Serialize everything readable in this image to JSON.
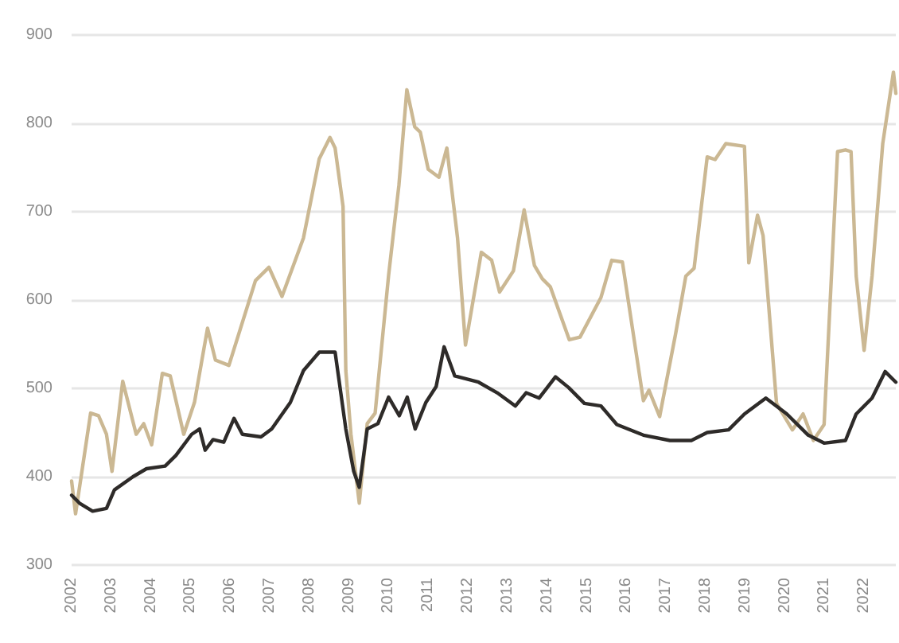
{
  "chart_data": {
    "type": "line",
    "xlim": [
      2002,
      2022.8
    ],
    "xticks": [
      2002,
      2003,
      2004,
      2005,
      2006,
      2007,
      2008,
      2009,
      2010,
      2011,
      2012,
      2013,
      2014,
      2015,
      2016,
      2017,
      2018,
      2019,
      2020,
      2021,
      2022
    ],
    "ylim": [
      300,
      900
    ],
    "yticks": [
      300,
      400,
      500,
      600,
      700,
      800,
      900
    ],
    "grid": "y",
    "marker": "none",
    "line_style": "solid",
    "series": [
      {
        "color": "#cbb893",
        "x": [
          2002.0,
          2002.1,
          2002.48,
          2002.68,
          2002.88,
          2003.02,
          2003.29,
          2003.63,
          2003.82,
          2004.02,
          2004.29,
          2004.49,
          2004.83,
          2005.1,
          2005.43,
          2005.63,
          2005.97,
          2006.64,
          2006.98,
          2007.31,
          2007.85,
          2008.25,
          2008.52,
          2008.65,
          2008.85,
          2008.92,
          2009.05,
          2009.26,
          2009.46,
          2009.66,
          2010.0,
          2010.26,
          2010.46,
          2010.66,
          2010.8,
          2011.0,
          2011.27,
          2011.47,
          2011.74,
          2011.94,
          2012.34,
          2012.6,
          2012.8,
          2013.15,
          2013.42,
          2013.68,
          2013.88,
          2014.08,
          2014.56,
          2014.83,
          2015.36,
          2015.63,
          2015.9,
          2016.43,
          2016.57,
          2016.84,
          2017.24,
          2017.5,
          2017.71,
          2018.04,
          2018.24,
          2018.51,
          2018.98,
          2019.09,
          2019.31,
          2019.45,
          2019.79,
          2020.19,
          2020.46,
          2020.72,
          2020.99,
          2021.33,
          2021.53,
          2021.67,
          2021.8,
          2022.0,
          2022.2,
          2022.47,
          2022.74,
          2022.8
        ],
        "values": [
          395,
          358,
          472,
          469,
          448,
          406,
          508,
          448,
          460,
          436,
          517,
          514,
          448,
          484,
          568,
          532,
          526,
          622,
          637,
          604,
          670,
          760,
          784,
          772,
          706,
          520,
          448,
          370,
          460,
          472,
          628,
          730,
          838,
          796,
          790,
          748,
          739,
          772,
          670,
          549,
          654,
          645,
          609,
          633,
          702,
          639,
          624,
          615,
          555,
          558,
          603,
          645,
          643,
          486,
          498,
          468,
          561,
          627,
          636,
          762,
          759,
          777,
          774,
          642,
          696,
          673,
          483,
          453,
          471,
          441,
          459,
          768,
          770,
          768,
          627,
          543,
          627,
          777,
          858,
          834
        ]
      },
      {
        "color": "#2e2b29",
        "x": [
          2002.0,
          2002.2,
          2002.53,
          2002.88,
          2003.08,
          2003.55,
          2003.89,
          2004.36,
          2004.63,
          2005.03,
          2005.23,
          2005.37,
          2005.57,
          2005.84,
          2006.1,
          2006.31,
          2006.78,
          2007.05,
          2007.52,
          2007.85,
          2008.25,
          2008.65,
          2008.79,
          2008.92,
          2009.12,
          2009.26,
          2009.46,
          2009.73,
          2010.0,
          2010.27,
          2010.47,
          2010.67,
          2010.94,
          2011.2,
          2011.4,
          2011.67,
          2012.27,
          2012.74,
          2013.2,
          2013.47,
          2013.8,
          2014.21,
          2014.54,
          2014.94,
          2015.36,
          2015.76,
          2016.43,
          2017.1,
          2017.64,
          2018.04,
          2018.58,
          2018.98,
          2019.52,
          2020.05,
          2020.59,
          2020.99,
          2021.53,
          2021.8,
          2022.2,
          2022.53,
          2022.8
        ],
        "values": [
          379,
          370,
          361,
          364,
          385,
          400,
          409,
          412,
          424,
          448,
          454,
          430,
          442,
          439,
          466,
          448,
          445,
          454,
          484,
          520,
          541,
          541,
          496,
          454,
          406,
          388,
          454,
          460,
          490,
          469,
          490,
          454,
          484,
          502,
          547,
          514,
          507,
          495,
          480,
          495,
          489,
          513,
          501,
          483,
          480,
          459,
          447,
          441,
          441,
          450,
          453,
          471,
          489,
          471,
          447,
          438,
          441,
          471,
          489,
          519,
          507
        ]
      }
    ]
  }
}
